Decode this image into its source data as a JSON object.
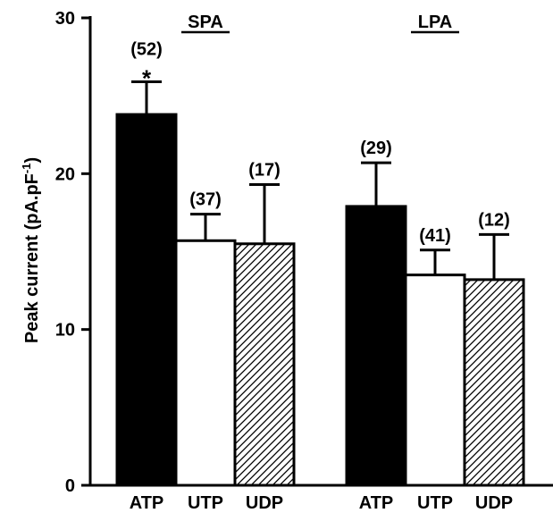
{
  "chart_data": {
    "type": "bar",
    "ylabel": "Peak current (pA.pF",
    "ylabel_superscript": "-1",
    "ylabel_suffix": ")",
    "ylim": [
      0,
      30
    ],
    "yticks": [
      "0",
      "10",
      "20",
      "30"
    ],
    "categories": [
      "ATP",
      "UTP",
      "UDP",
      "ATP",
      "UTP",
      "UDP"
    ],
    "groups": [
      {
        "title": "SPA",
        "bars": [
          {
            "label": "ATP",
            "value": 23.8,
            "error": 2.1,
            "n": "(52)",
            "annotation": "*",
            "fill": "solid-black"
          },
          {
            "label": "UTP",
            "value": 15.7,
            "error": 1.7,
            "n": "(37)",
            "annotation": "",
            "fill": "white"
          },
          {
            "label": "UDP",
            "value": 15.5,
            "error": 3.8,
            "n": "(17)",
            "annotation": "",
            "fill": "hatched"
          }
        ]
      },
      {
        "title": "LPA",
        "bars": [
          {
            "label": "ATP",
            "value": 17.9,
            "error": 2.8,
            "n": "(29)",
            "annotation": "",
            "fill": "solid-black"
          },
          {
            "label": "UTP",
            "value": 13.5,
            "error": 1.6,
            "n": "(41)",
            "annotation": "",
            "fill": "white"
          },
          {
            "label": "UDP",
            "value": 13.2,
            "error": 2.9,
            "n": "(12)",
            "annotation": "",
            "fill": "hatched"
          }
        ]
      }
    ],
    "colors": {
      "bar_fill": "#000000",
      "bar_stroke": "#000000",
      "background": "#ffffff"
    }
  }
}
